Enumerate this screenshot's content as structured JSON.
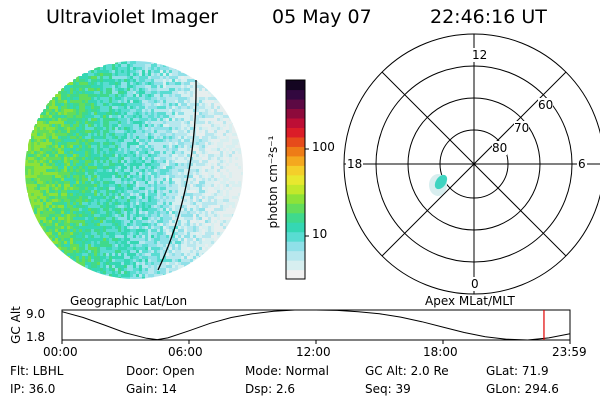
{
  "header": {
    "instrument": "Ultraviolet Imager",
    "date": "05 May 07",
    "time": "22:46:16 UT"
  },
  "colorbar": {
    "label": "photon cm⁻²s⁻¹",
    "ticks": [
      "100",
      "10"
    ],
    "colors": [
      "#f0f0f0",
      "#d7eff0",
      "#b7e7ee",
      "#8fe0e8",
      "#59dcd2",
      "#35d7b3",
      "#3fd98d",
      "#62dd5c",
      "#8de238",
      "#c2e82b",
      "#e8e82f",
      "#f4cf2a",
      "#f4a81f",
      "#ee7c17",
      "#e64b1b",
      "#db1d28",
      "#bd0e35",
      "#8d0a3b",
      "#5c0943",
      "#32083f",
      "#140521"
    ]
  },
  "polar": {
    "mlt_labels": [
      "12",
      "18",
      "6",
      "0"
    ],
    "lat_labels": [
      "60",
      "70",
      "80"
    ]
  },
  "chart_data": {
    "type": "line",
    "title": "",
    "left_label": "Geographic Lat/Lon",
    "right_label": "Apex  MLat/MLT",
    "ylabel": "GC Alt",
    "yticks": [
      "9.0",
      "1.8"
    ],
    "ylim": [
      1.8,
      9.0
    ],
    "xticks": [
      "00:00",
      "06:00",
      "12:00",
      "18:00",
      "23:59"
    ],
    "xlim_hours": [
      0,
      24
    ],
    "current_time_hours": 22.77,
    "series": [
      {
        "x_hours": [
          0,
          1,
          2,
          3,
          4,
          4.5,
          5,
          6,
          7,
          8,
          9,
          10,
          11,
          12,
          13,
          14,
          15,
          16,
          17,
          18,
          19,
          20,
          21,
          22,
          23,
          24
        ],
        "values": [
          8.6,
          7.2,
          5.4,
          3.5,
          2.2,
          1.9,
          2.3,
          4.0,
          5.8,
          7.2,
          8.1,
          8.7,
          9.0,
          9.0,
          8.9,
          8.6,
          8.1,
          7.3,
          6.2,
          4.9,
          3.6,
          2.6,
          2.0,
          1.8,
          2.3,
          3.3
        ]
      }
    ]
  },
  "status": {
    "filter": "Flt:  LBHL",
    "ip": "IP:  36.0",
    "door": "Door:  Open",
    "gain": "Gain:  14",
    "mode": "Mode:  Normal",
    "dsp": "Dsp:      2.6",
    "gc_alt": "GC Alt:  2.0 Re",
    "seq": "Seq:  39",
    "glat": "GLat:   71.9",
    "glon": "GLon:  294.6"
  }
}
